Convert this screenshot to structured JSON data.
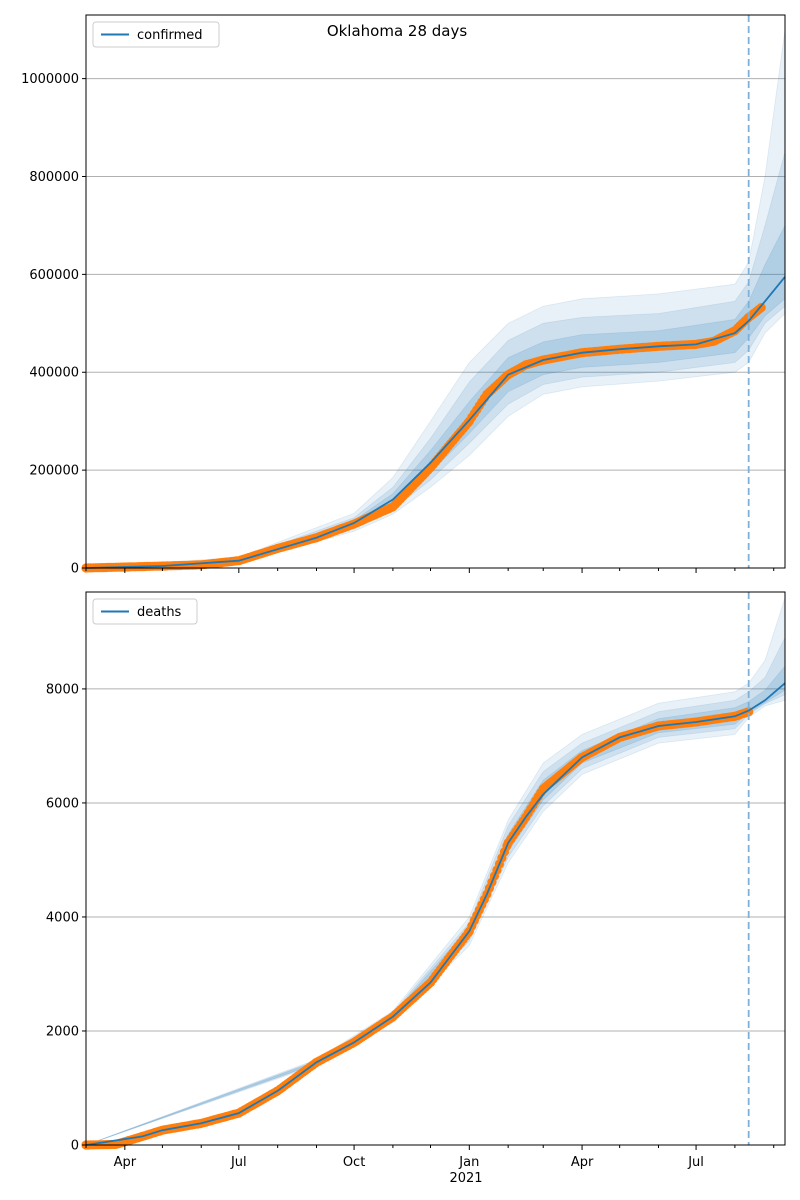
{
  "figure": {
    "title": "Oklahoma 28 days"
  },
  "chart_data": [
    {
      "type": "line",
      "legend": {
        "entries": [
          "confirmed"
        ],
        "placement": "top-left"
      },
      "grid": "horizontal",
      "ylim": [
        0,
        1130000
      ],
      "xlim": [
        "2020-03-01",
        "2021-09-10"
      ],
      "yticks": [
        0,
        200000,
        400000,
        600000,
        800000,
        1000000
      ],
      "ytick_labels": [
        "0",
        "200000",
        "400000",
        "600000",
        "800000",
        "1000000"
      ],
      "forecast_start": "2021-08-12",
      "observed": {
        "x": [
          "2020-03-01",
          "2020-04-01",
          "2020-05-01",
          "2020-06-01",
          "2020-07-01",
          "2020-08-01",
          "2020-09-01",
          "2020-10-01",
          "2020-11-01",
          "2020-12-01",
          "2021-01-01",
          "2021-01-15",
          "2021-02-01",
          "2021-02-15",
          "2021-03-01",
          "2021-04-01",
          "2021-05-01",
          "2021-06-01",
          "2021-07-01",
          "2021-07-15",
          "2021-08-01",
          "2021-08-12",
          "2021-08-22"
        ],
        "y": [
          0,
          2000,
          4000,
          6500,
          15000,
          40000,
          62000,
          90000,
          125000,
          205000,
          300000,
          355000,
          395000,
          415000,
          425000,
          440000,
          447000,
          453000,
          457000,
          463000,
          485000,
          512000,
          532000
        ]
      },
      "model": {
        "x": [
          "2020-03-01",
          "2020-05-01",
          "2020-07-01",
          "2020-09-01",
          "2020-10-01",
          "2020-11-01",
          "2020-12-01",
          "2021-01-01",
          "2021-02-01",
          "2021-03-01",
          "2021-04-01",
          "2021-05-01",
          "2021-06-01",
          "2021-07-01",
          "2021-08-01",
          "2021-08-12",
          "2021-08-25",
          "2021-09-10"
        ],
        "y": [
          0,
          4000,
          15000,
          62000,
          92000,
          140000,
          215000,
          302000,
          395000,
          425000,
          440000,
          447000,
          453000,
          457000,
          480000,
          505000,
          545000,
          595000
        ]
      },
      "bands": [
        {
          "x": [
            "2020-03-01",
            "2020-07-01",
            "2020-10-01",
            "2020-11-01",
            "2020-12-01",
            "2021-01-01",
            "2021-02-01",
            "2021-03-01",
            "2021-04-01",
            "2021-06-01",
            "2021-08-01",
            "2021-08-12",
            "2021-08-25",
            "2021-09-10"
          ],
          "lower": [
            0,
            9000,
            75000,
            110000,
            165000,
            230000,
            310000,
            355000,
            370000,
            382000,
            400000,
            420000,
            480000,
            520000
          ],
          "upper": [
            0,
            22000,
            112000,
            185000,
            300000,
            420000,
            500000,
            535000,
            550000,
            560000,
            580000,
            625000,
            800000,
            1100000
          ]
        },
        {
          "x": [
            "2020-03-01",
            "2020-07-01",
            "2020-10-01",
            "2020-11-01",
            "2020-12-01",
            "2021-01-01",
            "2021-02-01",
            "2021-03-01",
            "2021-04-01",
            "2021-06-01",
            "2021-08-01",
            "2021-08-12",
            "2021-08-25",
            "2021-09-10"
          ],
          "lower": [
            0,
            11000,
            82000,
            120000,
            180000,
            255000,
            335000,
            375000,
            390000,
            400000,
            420000,
            445000,
            500000,
            535000
          ],
          "upper": [
            0,
            19000,
            103000,
            165000,
            265000,
            380000,
            465000,
            500000,
            512000,
            520000,
            545000,
            585000,
            700000,
            850000
          ]
        },
        {
          "x": [
            "2020-03-01",
            "2020-07-01",
            "2020-10-01",
            "2020-11-01",
            "2020-12-01",
            "2021-01-01",
            "2021-02-01",
            "2021-03-01",
            "2021-04-01",
            "2021-06-01",
            "2021-08-01",
            "2021-08-12",
            "2021-08-25",
            "2021-09-10"
          ],
          "lower": [
            0,
            13000,
            87000,
            130000,
            195000,
            275000,
            360000,
            395000,
            410000,
            420000,
            440000,
            470000,
            515000,
            550000
          ],
          "upper": [
            0,
            17000,
            97000,
            152000,
            240000,
            340000,
            430000,
            462000,
            477000,
            485000,
            508000,
            545000,
            620000,
            700000
          ]
        }
      ]
    },
    {
      "type": "line",
      "legend": {
        "entries": [
          "deaths"
        ],
        "placement": "top-left"
      },
      "grid": "horizontal",
      "ylim": [
        0,
        9700
      ],
      "xlim": [
        "2020-03-01",
        "2021-09-10"
      ],
      "yticks": [
        0,
        2000,
        4000,
        6000,
        8000
      ],
      "ytick_labels": [
        "0",
        "2000",
        "4000",
        "6000",
        "8000"
      ],
      "xtick_labels": [
        "Apr",
        "Jul",
        "Oct",
        "Jan",
        "Apr",
        "Jul"
      ],
      "xtick_dates": [
        "2020-04-01",
        "2020-07-01",
        "2020-10-01",
        "2021-01-01",
        "2021-04-01",
        "2021-07-01"
      ],
      "xtick_sublabel": "2021",
      "forecast_start": "2021-08-12",
      "observed": {
        "x": [
          "2020-03-01",
          "2020-03-25",
          "2020-04-15",
          "2020-05-01",
          "2020-06-01",
          "2020-07-01",
          "2020-08-01",
          "2020-09-01",
          "2020-10-01",
          "2020-11-01",
          "2020-12-01",
          "2021-01-01",
          "2021-01-15",
          "2021-02-01",
          "2021-02-15",
          "2021-03-01",
          "2021-04-01",
          "2021-05-01",
          "2021-06-01",
          "2021-07-01",
          "2021-08-01",
          "2021-08-12"
        ],
        "y": [
          0,
          10,
          150,
          260,
          380,
          560,
          950,
          1450,
          1800,
          2250,
          2850,
          3750,
          4400,
          5300,
          5750,
          6250,
          6800,
          7150,
          7350,
          7420,
          7520,
          7600
        ]
      },
      "model": {
        "x": [
          "2020-03-01",
          "2020-04-15",
          "2020-05-01",
          "2020-06-01",
          "2020-07-01",
          "2020-08-01",
          "2020-09-01",
          "2020-10-01",
          "2020-11-01",
          "2020-12-01",
          "2021-01-01",
          "2021-01-15",
          "2021-02-01",
          "2021-02-15",
          "2021-03-01",
          "2021-04-01",
          "2021-05-01",
          "2021-06-01",
          "2021-07-01",
          "2021-08-01",
          "2021-08-12",
          "2021-08-25",
          "2021-09-10"
        ],
        "y": [
          0,
          150,
          260,
          380,
          560,
          950,
          1450,
          1800,
          2250,
          2850,
          3750,
          4400,
          5300,
          5750,
          6150,
          6800,
          7150,
          7350,
          7420,
          7520,
          7620,
          7800,
          8100
        ]
      },
      "bands": [
        {
          "x": [
            "2020-03-01",
            "2020-09-01",
            "2020-11-01",
            "2021-01-01",
            "2021-02-01",
            "2021-03-01",
            "2021-04-01",
            "2021-06-01",
            "2021-08-01",
            "2021-08-12",
            "2021-08-25",
            "2021-09-10"
          ],
          "lower": [
            0,
            1400,
            2150,
            3500,
            4950,
            5850,
            6500,
            7050,
            7200,
            7500,
            7700,
            7800
          ],
          "upper": [
            0,
            1500,
            2350,
            4000,
            5700,
            6700,
            7200,
            7750,
            7950,
            8100,
            8500,
            9600
          ]
        },
        {
          "x": [
            "2020-03-01",
            "2020-09-01",
            "2020-11-01",
            "2021-01-01",
            "2021-02-01",
            "2021-03-01",
            "2021-04-01",
            "2021-06-01",
            "2021-08-01",
            "2021-08-12",
            "2021-08-25",
            "2021-09-10"
          ],
          "lower": [
            0,
            1420,
            2180,
            3580,
            5050,
            5950,
            6600,
            7150,
            7300,
            7550,
            7740,
            7900
          ],
          "upper": [
            0,
            1480,
            2320,
            3900,
            5600,
            6550,
            7050,
            7600,
            7800,
            7950,
            8200,
            8900
          ]
        },
        {
          "x": [
            "2020-03-01",
            "2020-09-01",
            "2020-11-01",
            "2021-01-01",
            "2021-02-01",
            "2021-03-01",
            "2021-04-01",
            "2021-06-01",
            "2021-08-01",
            "2021-08-12",
            "2021-08-25",
            "2021-09-10"
          ],
          "lower": [
            0,
            1430,
            2210,
            3650,
            5150,
            6050,
            6700,
            7230,
            7380,
            7580,
            7760,
            7980
          ],
          "upper": [
            0,
            1470,
            2290,
            3820,
            5450,
            6400,
            6920,
            7480,
            7670,
            7780,
            7980,
            8400
          ]
        }
      ]
    }
  ]
}
